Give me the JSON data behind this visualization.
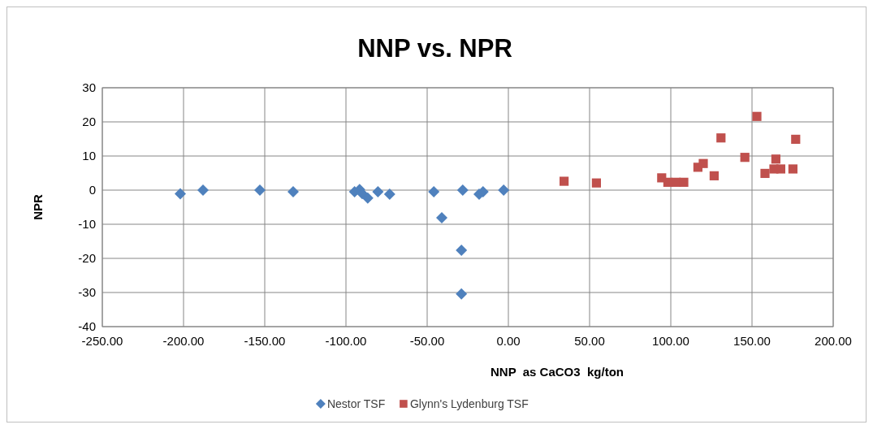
{
  "chart_data": {
    "type": "scatter",
    "title": "NNP vs. NPR",
    "xlabel": "NNP  as CaCO3  kg/ton",
    "ylabel": "NPR",
    "xlim": [
      -250,
      200
    ],
    "xticks": [
      {
        "value": -250,
        "label": "-250.00"
      },
      {
        "value": -200,
        "label": "-200.00"
      },
      {
        "value": -150,
        "label": "-150.00"
      },
      {
        "value": -100,
        "label": "-100.00"
      },
      {
        "value": -50,
        "label": "-50.00"
      },
      {
        "value": 0,
        "label": "0.00"
      },
      {
        "value": 50,
        "label": "50.00"
      },
      {
        "value": 100,
        "label": "100.00"
      },
      {
        "value": 150,
        "label": "150.00"
      },
      {
        "value": 200,
        "label": "200.00"
      }
    ],
    "ylim": [
      -40,
      30
    ],
    "yticks": [
      -40,
      -30,
      -20,
      -10,
      0,
      10,
      20,
      30
    ],
    "grid": true,
    "legend": "bottom",
    "series": [
      {
        "name": "Nestor TSF",
        "color": "#4f81bd",
        "marker": "diamond",
        "x": [
          -202,
          -188,
          -153,
          -132.5,
          -94.7,
          -91.6,
          -90,
          -86.6,
          -80.3,
          -73.1,
          -45.9,
          -41,
          -28.1,
          -28.9,
          -28.9,
          -18,
          -15.6,
          -2.9
        ],
        "values": [
          -1.1,
          0,
          0,
          -0.5,
          -0.5,
          0.2,
          -1,
          -2.3,
          -0.5,
          -1.2,
          -0.5,
          -8.1,
          0,
          -17.6,
          -30.4,
          -1.2,
          -0.5,
          0
        ]
      },
      {
        "name": "Glynn's Lydenburg TSF",
        "color": "#c0504d",
        "marker": "square",
        "x": [
          34.3,
          54.2,
          94.4,
          98.2,
          103.3,
          108,
          116.7,
          120,
          126.7,
          130.9,
          145.6,
          153,
          158,
          164.7,
          163.5,
          167.7,
          175.2,
          176.9
        ],
        "values": [
          2.6,
          2.1,
          3.6,
          2.3,
          2.3,
          2.3,
          6.7,
          7.8,
          4.2,
          15.3,
          9.6,
          21.6,
          4.9,
          9.1,
          6.2,
          6.2,
          6.2,
          14.9
        ]
      }
    ]
  }
}
